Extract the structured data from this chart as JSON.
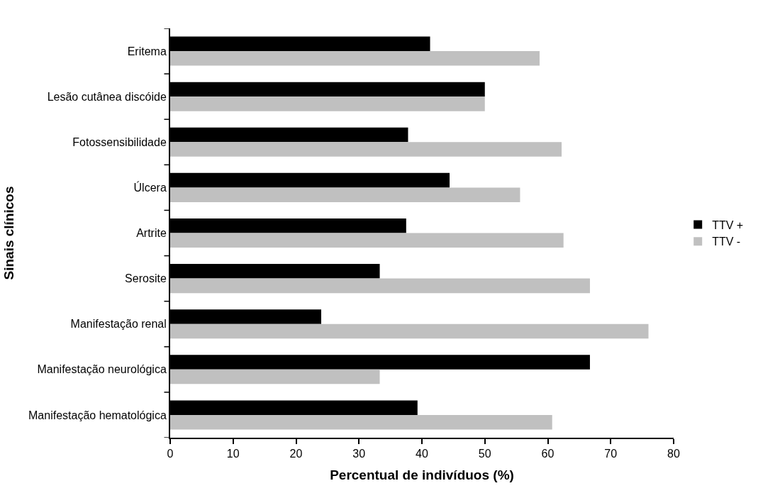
{
  "chart_data": {
    "type": "bar",
    "orientation": "horizontal",
    "xlabel": "Percentual de indivíduos (%)",
    "ylabel": "Sinais clínicos",
    "categories": [
      "Eritema",
      "Lesão cutânea discóide",
      "Fotossensibilidade",
      "Úlcera",
      "Artrite",
      "Serosite",
      "Manifestação renal",
      "Manifestação neurológica",
      "Manifestação hematológica"
    ],
    "series": [
      {
        "name": "TTV +",
        "color": "#000000",
        "values": [
          41.3,
          50,
          37.8,
          44.4,
          37.5,
          33.3,
          24,
          66.7,
          39.3
        ]
      },
      {
        "name": "TTV -",
        "color": "#c0c0c0",
        "values": [
          58.7,
          50,
          62.2,
          55.6,
          62.5,
          66.7,
          76,
          33.3,
          60.7
        ]
      }
    ],
    "xlim": [
      0,
      80
    ],
    "xticks": [
      0,
      10,
      20,
      30,
      40,
      50,
      60,
      70,
      80
    ],
    "legend": "right"
  }
}
